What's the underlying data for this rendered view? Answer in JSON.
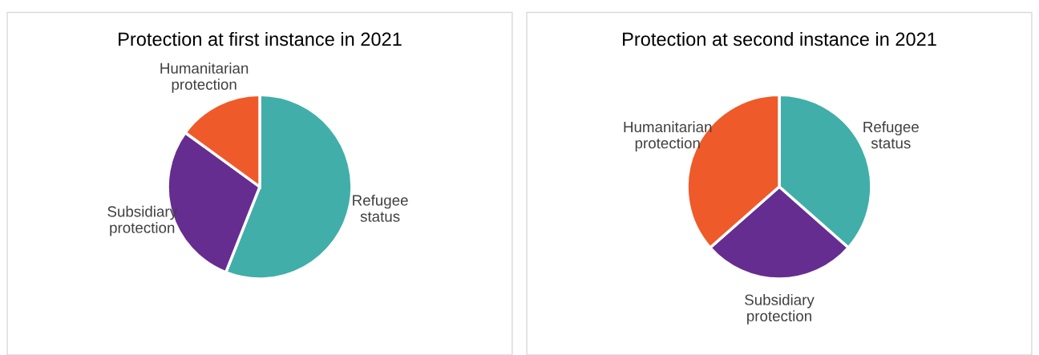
{
  "chart_data": [
    {
      "type": "pie",
      "title": "Protection at first instance in 2021",
      "categories": [
        "Refugee\nstatus",
        "Subsidiary\nprotection",
        "Humanitarian\nprotection"
      ],
      "values": [
        56,
        29,
        15
      ],
      "colors": [
        "#41aea9",
        "#662d91",
        "#ef5a2a"
      ]
    },
    {
      "type": "pie",
      "title": "Protection at second instance in 2021",
      "categories": [
        "Refugee\nstatus",
        "Subsidiary\nprotection",
        "Humanitarian\nprotection"
      ],
      "values": [
        36.5,
        27,
        36.5
      ],
      "colors": [
        "#41aea9",
        "#662d91",
        "#ef5a2a"
      ]
    }
  ]
}
